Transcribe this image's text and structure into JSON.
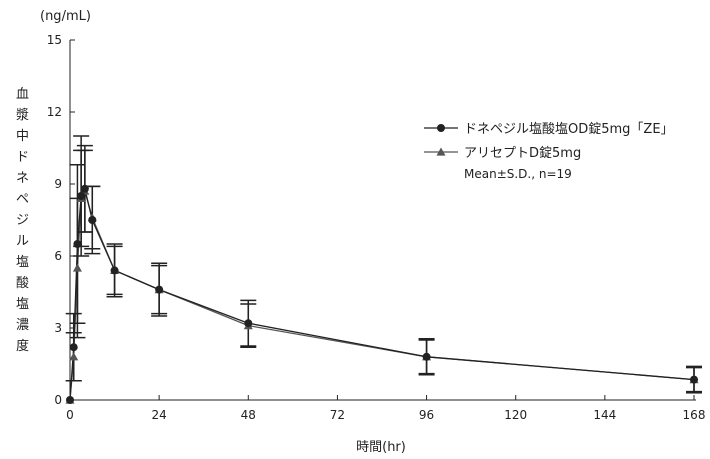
{
  "chart_data": {
    "type": "line",
    "unit_label": "(ng/mL)",
    "xlabel": "時間(hr)",
    "ylabel": "血漿中ドネペジル塩酸塩濃度",
    "xlim": [
      0,
      168
    ],
    "ylim": [
      0,
      15
    ],
    "x_ticks": [
      0,
      24,
      48,
      72,
      96,
      120,
      144,
      168
    ],
    "y_ticks": [
      0,
      3,
      6,
      9,
      12,
      15
    ],
    "grid": false,
    "legend_position": "top-right",
    "note": "Mean±S.D., n=19",
    "x": [
      0,
      1,
      2,
      3,
      4,
      6,
      12,
      24,
      48,
      96,
      168
    ],
    "series": [
      {
        "name": "ドネペジル塩酸塩OD錠5mg「ZE」",
        "marker": "circle",
        "color": "#222222",
        "values": [
          0,
          2.2,
          6.5,
          8.5,
          8.8,
          7.5,
          5.4,
          4.6,
          3.2,
          1.8,
          0.85
        ],
        "sd": [
          0,
          1.4,
          3.3,
          2.5,
          1.8,
          1.4,
          1.1,
          1.1,
          0.95,
          0.75,
          0.55
        ]
      },
      {
        "name": "アリセプトD錠5mg",
        "marker": "triangle",
        "color": "#555555",
        "values": [
          0,
          1.8,
          5.5,
          8.4,
          8.7,
          7.6,
          5.4,
          4.6,
          3.1,
          1.8,
          0.85
        ],
        "sd": [
          0,
          1.0,
          2.9,
          2.0,
          1.7,
          1.3,
          1.0,
          1.0,
          0.9,
          0.7,
          0.5
        ]
      }
    ]
  }
}
